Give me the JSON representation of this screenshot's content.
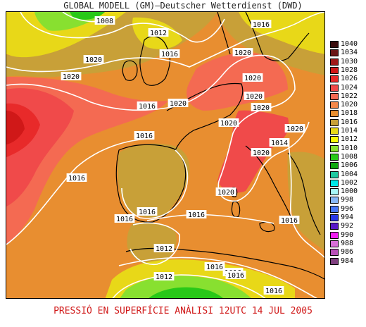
{
  "title": "GLOBAL MODELL (GM)—Deutscher Wetterdienst (DWD)",
  "footer": "PRESSIÓ EN SUPERFÍCIE   ANÀLISI 12UTC 14 JUL 2005",
  "legend": [
    {
      "label": "1040",
      "color": "#3a0d0d"
    },
    {
      "label": "1034",
      "color": "#6a1616"
    },
    {
      "label": "1030",
      "color": "#a01818"
    },
    {
      "label": "1028",
      "color": "#d01818"
    },
    {
      "label": "1026",
      "color": "#e82a2a"
    },
    {
      "label": "1024",
      "color": "#f04a4a"
    },
    {
      "label": "1022",
      "color": "#f46a52"
    },
    {
      "label": "1020",
      "color": "#f4884a"
    },
    {
      "label": "1018",
      "color": "#e88e30"
    },
    {
      "label": "1016",
      "color": "#c8a038"
    },
    {
      "label": "1014",
      "color": "#e8d818"
    },
    {
      "label": "1012",
      "color": "#f8f808"
    },
    {
      "label": "1010",
      "color": "#88e030"
    },
    {
      "label": "1008",
      "color": "#28c818"
    },
    {
      "label": "1006",
      "color": "#10a810"
    },
    {
      "label": "1004",
      "color": "#20c8a0"
    },
    {
      "label": "1002",
      "color": "#00e8e8"
    },
    {
      "label": "1000",
      "color": "#a8f8f8"
    },
    {
      "label": "998",
      "color": "#88b8f8"
    },
    {
      "label": "996",
      "color": "#4878f8"
    },
    {
      "label": "994",
      "color": "#2838e8"
    },
    {
      "label": "992",
      "color": "#5818c8"
    },
    {
      "label": "990",
      "color": "#f020f0"
    },
    {
      "label": "988",
      "color": "#d870d8"
    },
    {
      "label": "986",
      "color": "#b850b8"
    },
    {
      "label": "984",
      "color": "#804080"
    }
  ],
  "isobar_labels": [
    "1008",
    "1012",
    "1016",
    "1016",
    "1020",
    "1020",
    "1020",
    "1020",
    "1016",
    "1020",
    "1020",
    "1020",
    "1020",
    "1020",
    "1016",
    "1014",
    "1020",
    "1020",
    "1016",
    "1016",
    "1016",
    "1016",
    "1012",
    "1012",
    "1016",
    "1016",
    "1016",
    "1016",
    "1016"
  ]
}
